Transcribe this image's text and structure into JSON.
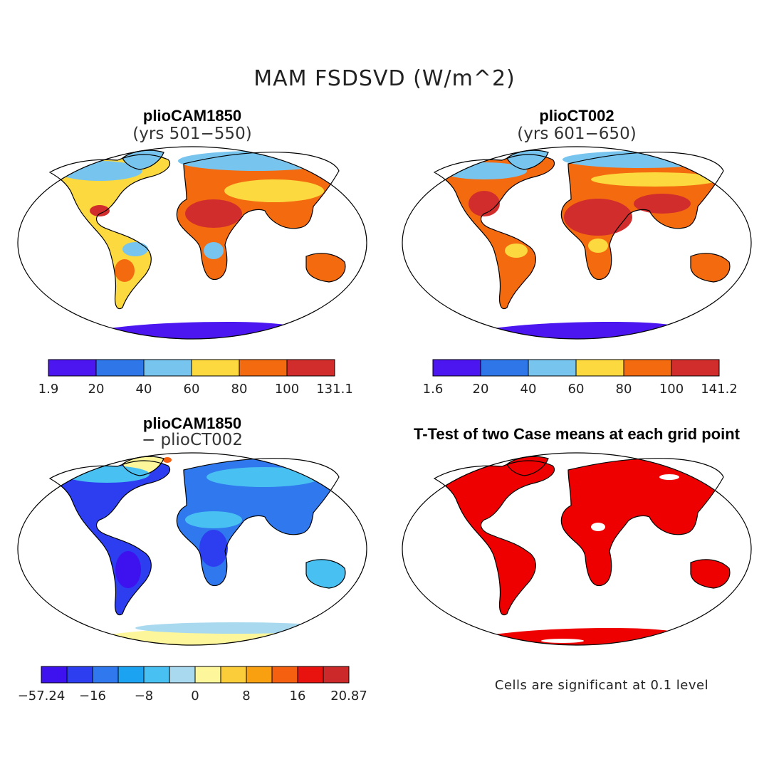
{
  "title": "MAM FSDSVD (W/m^2)",
  "panels": [
    {
      "id": "tl",
      "title": "plioCAM1850",
      "subtitle": "(yrs 501−550)"
    },
    {
      "id": "tr",
      "title": "plioCT002",
      "subtitle": "(yrs 601−650)"
    },
    {
      "id": "bl",
      "title": "plioCAM1850",
      "subtitle": "− plioCT002"
    },
    {
      "id": "br",
      "title": "T-Test of two Case means at each grid point",
      "subtitle": ""
    }
  ],
  "colorbars": [
    {
      "id": "cb-tl",
      "labels": [
        "1.9",
        "20",
        "40",
        "60",
        "80",
        "100",
        "131.1"
      ],
      "colors": [
        "#4b16f0",
        "#2f77e8",
        "#77c4ee",
        "#fbd93f",
        "#f46a0f",
        "#d22d2d"
      ]
    },
    {
      "id": "cb-tr",
      "labels": [
        "1.6",
        "20",
        "40",
        "60",
        "80",
        "100",
        "141.2"
      ],
      "colors": [
        "#4b16f0",
        "#2f77e8",
        "#77c4ee",
        "#fbd93f",
        "#f46a0f",
        "#d22d2d"
      ]
    },
    {
      "id": "cb-bl",
      "labels": [
        "−57.24",
        "−16",
        "−8",
        "0",
        "8",
        "16",
        "20.87"
      ],
      "colors": [
        "#3d12ee",
        "#2c3ef0",
        "#2f78ee",
        "#1ba2f0",
        "#49c0f2",
        "#a8d9ef",
        "#fdf69a",
        "#fbcd3a",
        "#f8a010",
        "#f56010",
        "#e8120e",
        "#cc2a2a"
      ]
    }
  ],
  "significance_note": "Cells are significant at 0.1 level",
  "significance_color": "#ee0000"
}
